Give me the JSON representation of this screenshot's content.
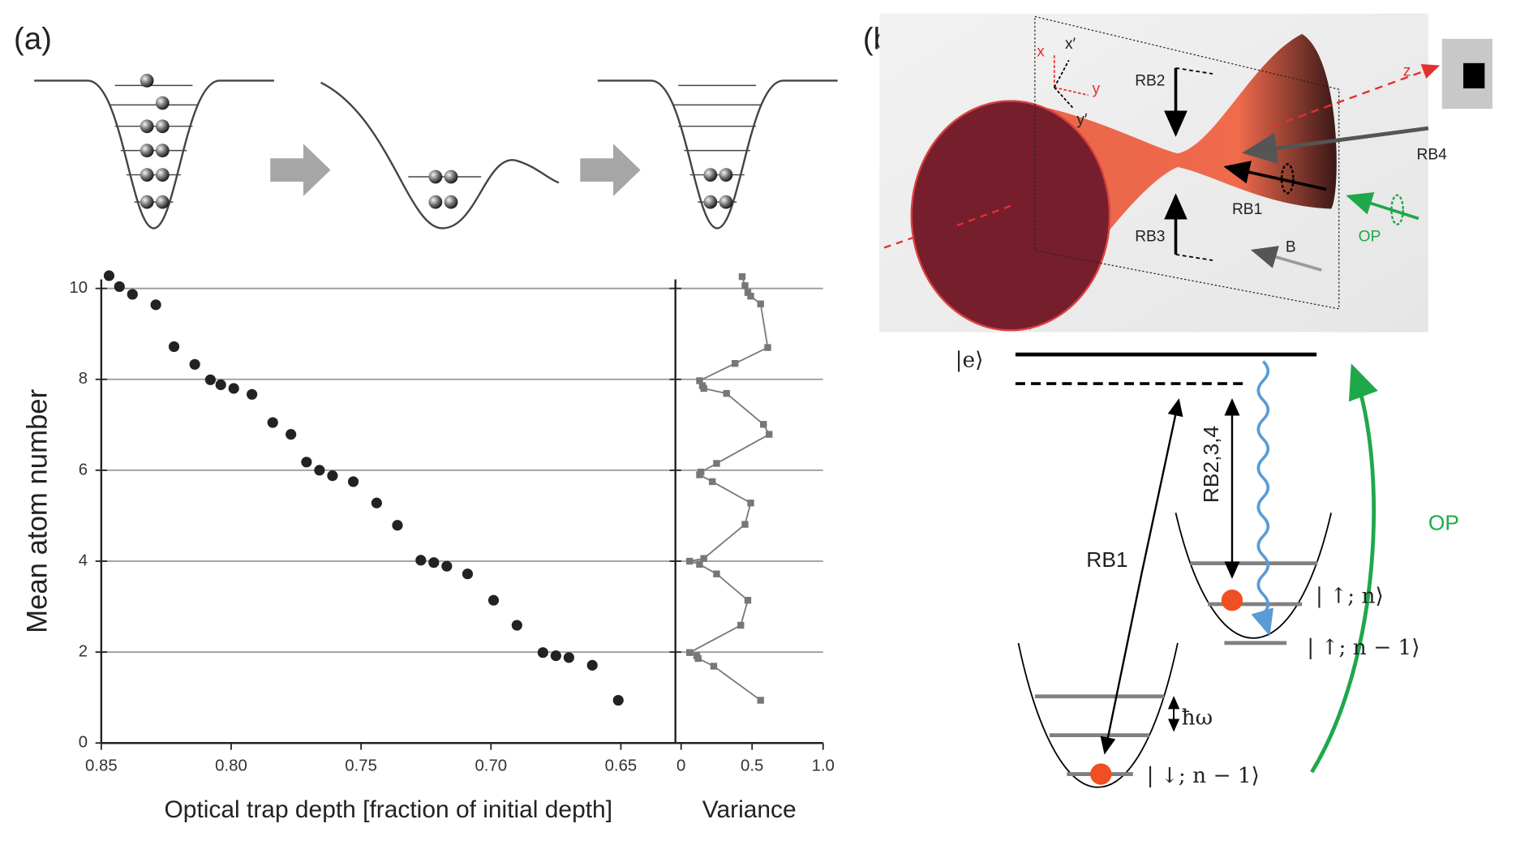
{
  "panels": {
    "a": "(a)",
    "b": "(b)"
  },
  "chart_data": [
    {
      "type": "scatter",
      "xlabel": "Optical trap depth [fraction of initial depth]",
      "ylabel": "Mean atom number",
      "color": "#222222",
      "x": [
        0.847,
        0.843,
        0.838,
        0.829,
        0.822,
        0.814,
        0.808,
        0.804,
        0.799,
        0.792,
        0.784,
        0.777,
        0.771,
        0.766,
        0.761,
        0.753,
        0.744,
        0.736,
        0.727,
        0.722,
        0.717,
        0.709,
        0.699,
        0.69,
        0.68,
        0.675,
        0.67,
        0.661,
        0.651
      ],
      "values": [
        10.28,
        10.04,
        9.87,
        9.64,
        8.72,
        8.33,
        7.99,
        7.88,
        7.8,
        7.67,
        7.05,
        6.79,
        6.18,
        6.0,
        5.88,
        5.75,
        5.28,
        4.79,
        4.02,
        3.97,
        3.89,
        3.72,
        3.14,
        2.59,
        1.99,
        1.92,
        1.88,
        1.71,
        0.94
      ],
      "xlim": [
        0.85,
        0.629
      ],
      "xticks": [
        0.85,
        {
          "value": 0.8,
          "label": "0.80"
        },
        0.75,
        {
          "value": 0.7,
          "label": "0.70"
        },
        0.65
      ],
      "ylim": [
        0,
        10.2
      ],
      "yticks": [
        0,
        2,
        4,
        6,
        8,
        10
      ],
      "grid": true
    },
    {
      "type": "line",
      "xlabel": "Variance",
      "color": "#777777",
      "x": [
        0.43,
        0.45,
        0.47,
        0.49,
        0.56,
        0.61,
        0.38,
        0.13,
        0.15,
        0.16,
        0.32,
        0.58,
        0.62,
        0.25,
        0.14,
        0.13,
        0.22,
        0.49,
        0.45,
        0.16,
        0.06,
        0.13,
        0.25,
        0.47,
        0.42,
        0.06,
        0.11,
        0.12,
        0.23,
        0.56
      ],
      "values": [
        10.26,
        10.06,
        9.91,
        9.83,
        9.66,
        8.7,
        8.35,
        7.97,
        7.86,
        7.8,
        7.69,
        7.01,
        6.79,
        6.15,
        5.96,
        5.9,
        5.75,
        5.28,
        4.81,
        4.06,
        4.0,
        3.93,
        3.72,
        3.14,
        2.59,
        1.99,
        1.92,
        1.86,
        1.69,
        0.94
      ],
      "xlim": [
        -0.04,
        1.0
      ],
      "xticks": [
        0,
        0.5,
        {
          "value": 1,
          "label": "1.0"
        }
      ],
      "ylim": [
        0,
        10.2
      ],
      "yticks": [
        0,
        2,
        4,
        6,
        8,
        10
      ],
      "grid": true
    }
  ],
  "beam": {
    "x_prime": "x′",
    "x": "x",
    "y": "y",
    "y_prime": "y′",
    "z": "z",
    "rb2": "RB2",
    "rb4": "RB4",
    "rb1": "RB1",
    "rb3": "RB3",
    "op": "OP",
    "b": "B"
  },
  "levels": {
    "excited": "|e⟩",
    "rb234": "RB2,3,4",
    "rb1": "RB1",
    "op": "OP",
    "up_n": "| ↑; n⟩",
    "up_n1": "| ↑; n − 1⟩",
    "hbar_omega": "ħω",
    "down_n1": "| ↓; n − 1⟩"
  }
}
